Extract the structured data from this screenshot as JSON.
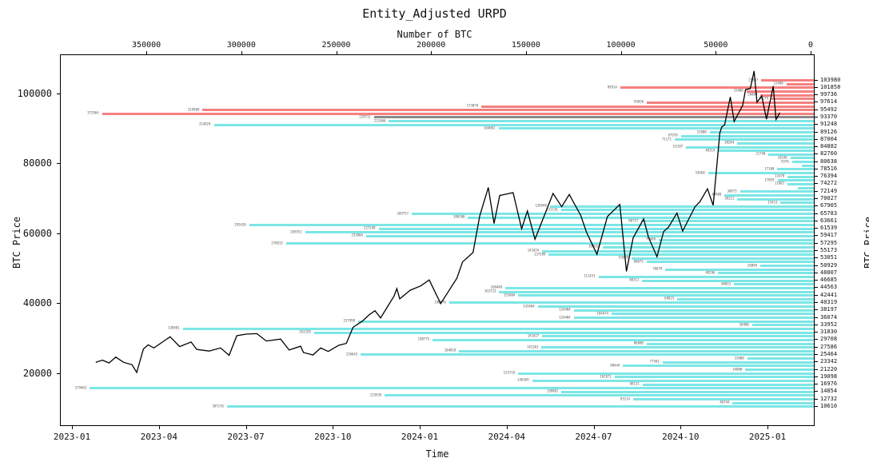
{
  "title": "Entity_Adjusted URPD",
  "axes": {
    "top_title": "Number of BTC",
    "top_ticks": [
      350000,
      300000,
      250000,
      200000,
      150000,
      100000,
      50000,
      0
    ],
    "bottom_title": "Time",
    "bottom_ticks": [
      "2023-01",
      "2023-04",
      "2023-07",
      "2023-10",
      "2024-01",
      "2024-04",
      "2024-07",
      "2024-10",
      "2025-01"
    ],
    "left_title": "BTC Price",
    "left_ticks": [
      100000,
      80000,
      60000,
      40000,
      20000
    ],
    "right_title": "BTC Price",
    "right_ticks": [
      103980,
      101858,
      99736,
      97614,
      95492,
      93370,
      91248,
      89126,
      87004,
      84882,
      82760,
      80638,
      78516,
      76394,
      74272,
      72149,
      70027,
      67905,
      65783,
      63661,
      61539,
      59417,
      57295,
      55173,
      53051,
      50929,
      48807,
      46685,
      44563,
      42441,
      40319,
      38197,
      36074,
      33952,
      31830,
      29708,
      27586,
      25464,
      23342,
      21220,
      19098,
      16976,
      14854,
      12732,
      10610
    ]
  },
  "colors": {
    "above_price_bar": "#f58080",
    "below_price_bar": "#7ce6e6",
    "current_price_bar": "#8a8a8a",
    "price_line": "#000000",
    "bar_label": "#555555"
  },
  "chart_data": {
    "type": "bar",
    "title": "Entity_Adjusted URPD",
    "xlabel": "Time",
    "ylabel": "BTC Price",
    "value_axis_label": "Number of BTC",
    "value_axis_range": [
      350000,
      0
    ],
    "price_axis_range": [
      103980,
      10610
    ],
    "note": "Horizontal URPD bars: BTC amount held at each price bucket. Red = buckets above spot price, cyan = below, grey = bucket containing spot.",
    "bars": [
      {
        "price": 103980,
        "btc": 25567,
        "band": "above"
      },
      {
        "price": 102919,
        "btc": 12400,
        "band": "above"
      },
      {
        "price": 101858,
        "btc": 99914,
        "band": "above"
      },
      {
        "price": 100797,
        "btc": 33400,
        "band": "above"
      },
      {
        "price": 99736,
        "btc": 26009,
        "band": "above"
      },
      {
        "price": 98675,
        "btc": 20279,
        "band": "above"
      },
      {
        "price": 97614,
        "btc": 85856,
        "band": "above"
      },
      {
        "price": 96553,
        "btc": 173070,
        "band": "above"
      },
      {
        "price": 95492,
        "btc": 319968,
        "band": "above"
      },
      {
        "price": 94431,
        "btc": 372964,
        "band": "above"
      },
      {
        "price": 93370,
        "btc": 229712,
        "band": "current"
      },
      {
        "price": 92309,
        "btc": 221866,
        "band": "below"
      },
      {
        "price": 91248,
        "btc": 314024,
        "band": "below"
      },
      {
        "price": 90187,
        "btc": 164062,
        "band": "below"
      },
      {
        "price": 89126,
        "btc": 52800,
        "band": "below"
      },
      {
        "price": 88065,
        "btc": 67976,
        "band": "below"
      },
      {
        "price": 87004,
        "btc": 71171,
        "band": "below"
      },
      {
        "price": 85943,
        "btc": 38284,
        "band": "below"
      },
      {
        "price": 84882,
        "btc": 65187,
        "band": "below"
      },
      {
        "price": 83821,
        "btc": 48314,
        "band": "below"
      },
      {
        "price": 82760,
        "btc": 21748,
        "band": "below"
      },
      {
        "price": 81699,
        "btc": 10246,
        "band": "below"
      },
      {
        "price": 80638,
        "btc": 9376,
        "band": "below"
      },
      {
        "price": 79577,
        "btc": 4293,
        "band": "below"
      },
      {
        "price": 78516,
        "btc": 17100,
        "band": "below"
      },
      {
        "price": 77455,
        "btc": 53668,
        "band": "below"
      },
      {
        "price": 76394,
        "btc": 11670,
        "band": "below"
      },
      {
        "price": 75333,
        "btc": 17059,
        "band": "below"
      },
      {
        "price": 74272,
        "btc": 11802,
        "band": "below"
      },
      {
        "price": 73211,
        "btc": 6183,
        "band": "below"
      },
      {
        "price": 72149,
        "btc": 36873,
        "band": "below"
      },
      {
        "price": 71088,
        "btc": 44900,
        "band": "below"
      },
      {
        "price": 70027,
        "btc": 38211,
        "band": "below"
      },
      {
        "price": 68966,
        "btc": 15413,
        "band": "below"
      },
      {
        "price": 67905,
        "btc": 136948,
        "band": "below"
      },
      {
        "price": 66844,
        "btc": 131136,
        "band": "below"
      },
      {
        "price": 65783,
        "btc": 209757,
        "band": "below"
      },
      {
        "price": 64722,
        "btc": 180106,
        "band": "below"
      },
      {
        "price": 63661,
        "btc": 88757,
        "band": "below"
      },
      {
        "price": 62600,
        "btc": 295426,
        "band": "below"
      },
      {
        "price": 61539,
        "btc": 227248,
        "band": "below"
      },
      {
        "price": 60478,
        "btc": 265951,
        "band": "below"
      },
      {
        "price": 59417,
        "btc": 233804,
        "band": "below"
      },
      {
        "price": 58356,
        "btc": 79600,
        "band": "below"
      },
      {
        "price": 57295,
        "btc": 276013,
        "band": "below"
      },
      {
        "price": 56234,
        "btc": 108924,
        "band": "below"
      },
      {
        "price": 55173,
        "btc": 141024,
        "band": "below"
      },
      {
        "price": 54112,
        "btc": 137589,
        "band": "below"
      },
      {
        "price": 53051,
        "btc": 93859,
        "band": "below"
      },
      {
        "price": 51990,
        "btc": 86073,
        "band": "below"
      },
      {
        "price": 50929,
        "btc": 26099,
        "band": "below"
      },
      {
        "price": 49868,
        "btc": 76079,
        "band": "below"
      },
      {
        "price": 48807,
        "btc": 48286,
        "band": "below"
      },
      {
        "price": 47746,
        "btc": 111431,
        "band": "below"
      },
      {
        "price": 46685,
        "btc": 88311,
        "band": "below"
      },
      {
        "price": 45624,
        "btc": 40033,
        "band": "below"
      },
      {
        "price": 44563,
        "btc": 160448,
        "band": "below"
      },
      {
        "price": 43502,
        "btc": 163723,
        "band": "below"
      },
      {
        "price": 42441,
        "btc": 153604,
        "band": "below"
      },
      {
        "price": 41380,
        "btc": 69823,
        "band": "below"
      },
      {
        "price": 40319,
        "btc": 190078,
        "band": "below"
      },
      {
        "price": 39258,
        "btc": 143404,
        "band": "below"
      },
      {
        "price": 38197,
        "btc": 124404,
        "band": "below"
      },
      {
        "price": 37136,
        "btc": 104474,
        "band": "below"
      },
      {
        "price": 36074,
        "btc": 124404,
        "band": "below"
      },
      {
        "price": 35013,
        "btc": 237998,
        "band": "below"
      },
      {
        "price": 33952,
        "btc": 30400,
        "band": "below"
      },
      {
        "price": 32891,
        "btc": 330401,
        "band": "below"
      },
      {
        "price": 31830,
        "btc": 261328,
        "band": "below"
      },
      {
        "price": 30769,
        "btc": 141027,
        "band": "below"
      },
      {
        "price": 29708,
        "btc": 198775,
        "band": "below"
      },
      {
        "price": 28647,
        "btc": 86000,
        "band": "below"
      },
      {
        "price": 27586,
        "btc": 141363,
        "band": "below"
      },
      {
        "price": 26525,
        "btc": 184818,
        "band": "below"
      },
      {
        "price": 25464,
        "btc": 236643,
        "band": "below"
      },
      {
        "price": 24403,
        "btc": 33000,
        "band": "below"
      },
      {
        "price": 23342,
        "btc": 77581,
        "band": "below"
      },
      {
        "price": 22281,
        "btc": 98444,
        "band": "below"
      },
      {
        "price": 21220,
        "btc": 34000,
        "band": "below"
      },
      {
        "price": 20159,
        "btc": 153716,
        "band": "below"
      },
      {
        "price": 19098,
        "btc": 102871,
        "band": "below"
      },
      {
        "price": 18037,
        "btc": 146369,
        "band": "below"
      },
      {
        "price": 16976,
        "btc": 88111,
        "band": "below"
      },
      {
        "price": 15915,
        "btc": 379463,
        "band": "below"
      },
      {
        "price": 14854,
        "btc": 130881,
        "band": "below"
      },
      {
        "price": 13793,
        "btc": 223926,
        "band": "below"
      },
      {
        "price": 12732,
        "btc": 93114,
        "band": "below"
      },
      {
        "price": 11671,
        "btc": 40744,
        "band": "below"
      },
      {
        "price": 10610,
        "btc": 307176,
        "band": "below"
      }
    ],
    "price_line": [
      [
        "2023-01-26",
        23100
      ],
      [
        "2023-02-02",
        23700
      ],
      [
        "2023-02-09",
        22900
      ],
      [
        "2023-02-16",
        24600
      ],
      [
        "2023-02-24",
        23100
      ],
      [
        "2023-03-05",
        22400
      ],
      [
        "2023-03-10",
        20200
      ],
      [
        "2023-03-17",
        26900
      ],
      [
        "2023-03-22",
        28100
      ],
      [
        "2023-03-28",
        27200
      ],
      [
        "2023-04-10",
        29650
      ],
      [
        "2023-04-14",
        30400
      ],
      [
        "2023-04-24",
        27600
      ],
      [
        "2023-05-06",
        28900
      ],
      [
        "2023-05-12",
        26800
      ],
      [
        "2023-05-25",
        26300
      ],
      [
        "2023-06-06",
        27200
      ],
      [
        "2023-06-15",
        25100
      ],
      [
        "2023-06-23",
        30700
      ],
      [
        "2023-07-03",
        31150
      ],
      [
        "2023-07-14",
        31300
      ],
      [
        "2023-07-24",
        29200
      ],
      [
        "2023-08-08",
        29750
      ],
      [
        "2023-08-17",
        26600
      ],
      [
        "2023-08-29",
        27700
      ],
      [
        "2023-09-01",
        25900
      ],
      [
        "2023-09-11",
        25200
      ],
      [
        "2023-09-19",
        27200
      ],
      [
        "2023-09-27",
        26200
      ],
      [
        "2023-10-08",
        27950
      ],
      [
        "2023-10-16",
        28500
      ],
      [
        "2023-10-23",
        33100
      ],
      [
        "2023-11-02",
        34900
      ],
      [
        "2023-11-09",
        36700
      ],
      [
        "2023-11-15",
        37850
      ],
      [
        "2023-11-21",
        35800
      ],
      [
        "2023-12-05",
        41990
      ],
      [
        "2023-12-08",
        44170
      ],
      [
        "2023-12-11",
        41250
      ],
      [
        "2023-12-22",
        43700
      ],
      [
        "2024-01-02",
        44950
      ],
      [
        "2024-01-11",
        46650
      ],
      [
        "2024-01-23",
        39900
      ],
      [
        "2024-02-09",
        47150
      ],
      [
        "2024-02-15",
        51800
      ],
      [
        "2024-02-26",
        54500
      ],
      [
        "2024-03-04",
        65000
      ],
      [
        "2024-03-13",
        73080
      ],
      [
        "2024-03-19",
        62800
      ],
      [
        "2024-03-25",
        70800
      ],
      [
        "2024-04-08",
        71630
      ],
      [
        "2024-04-17",
        61300
      ],
      [
        "2024-04-23",
        66400
      ],
      [
        "2024-05-01",
        58300
      ],
      [
        "2024-05-20",
        71400
      ],
      [
        "2024-05-29",
        67600
      ],
      [
        "2024-06-06",
        71100
      ],
      [
        "2024-06-18",
        65100
      ],
      [
        "2024-06-24",
        60300
      ],
      [
        "2024-07-05",
        54000
      ],
      [
        "2024-07-16",
        64800
      ],
      [
        "2024-07-29",
        68250
      ],
      [
        "2024-08-05",
        49100
      ],
      [
        "2024-08-12",
        58700
      ],
      [
        "2024-08-23",
        64100
      ],
      [
        "2024-08-28",
        59000
      ],
      [
        "2024-09-06",
        53300
      ],
      [
        "2024-09-13",
        60500
      ],
      [
        "2024-09-18",
        61700
      ],
      [
        "2024-09-27",
        65800
      ],
      [
        "2024-10-03",
        60600
      ],
      [
        "2024-10-16",
        67600
      ],
      [
        "2024-10-21",
        69000
      ],
      [
        "2024-10-29",
        72700
      ],
      [
        "2024-11-04",
        68000
      ],
      [
        "2024-11-11",
        88700
      ],
      [
        "2024-11-13",
        90400
      ],
      [
        "2024-11-16",
        91000
      ],
      [
        "2024-11-22",
        99000
      ],
      [
        "2024-11-26",
        91985
      ],
      [
        "2024-12-05",
        96600
      ],
      [
        "2024-12-08",
        101100
      ],
      [
        "2024-12-13",
        101400
      ],
      [
        "2024-12-17",
        106400
      ],
      [
        "2024-12-20",
        97460
      ],
      [
        "2024-12-25",
        99300
      ],
      [
        "2024-12-30",
        92640
      ],
      [
        "2025-01-03",
        98100
      ],
      [
        "2025-01-06",
        102100
      ],
      [
        "2025-01-09",
        92550
      ],
      [
        "2025-01-13",
        94500
      ]
    ]
  }
}
